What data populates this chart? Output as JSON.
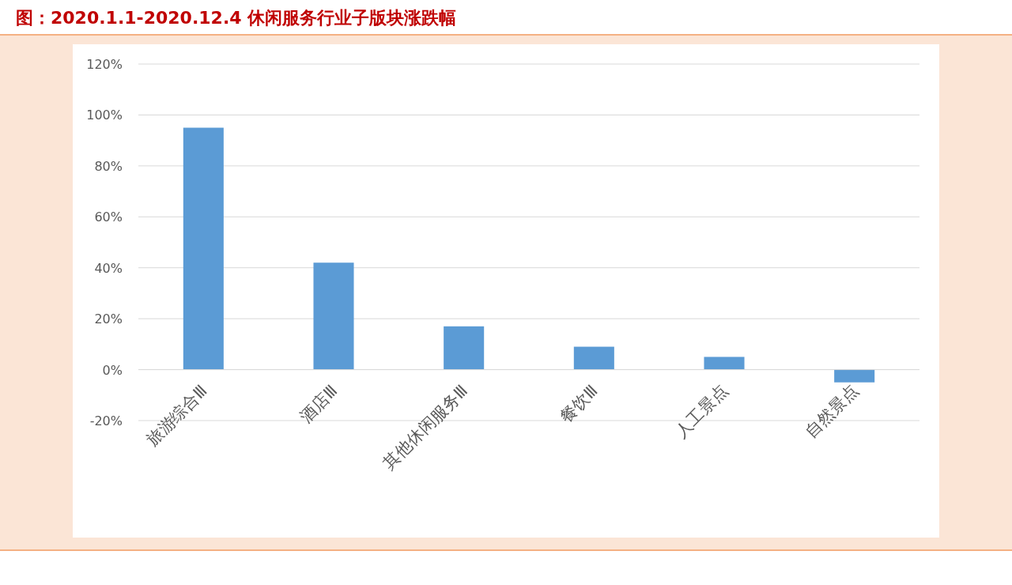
{
  "chart_data": {
    "type": "bar",
    "title": "图：2020.1.1-2020.12.4 休闲服务行业子版块涨跌幅",
    "categories": [
      "旅游综合Ⅲ",
      "酒店Ⅲ",
      "其他休闲服务Ⅲ",
      "餐饮Ⅲ",
      "人工景点",
      "自然景点"
    ],
    "values": [
      95,
      42,
      17,
      9,
      5,
      -5
    ],
    "color": "#5b9bd5",
    "ylim": [
      -20,
      120
    ],
    "yticks": [
      {
        "value": -20,
        "label": "-20%"
      },
      {
        "value": 0,
        "label": "0%"
      },
      {
        "value": 20,
        "label": "20%"
      },
      {
        "value": 40,
        "label": "40%"
      },
      {
        "value": 60,
        "label": "60%"
      },
      {
        "value": 80,
        "label": "80%"
      },
      {
        "value": 100,
        "label": "100%"
      },
      {
        "value": 120,
        "label": "120%"
      }
    ],
    "grid": "y"
  }
}
